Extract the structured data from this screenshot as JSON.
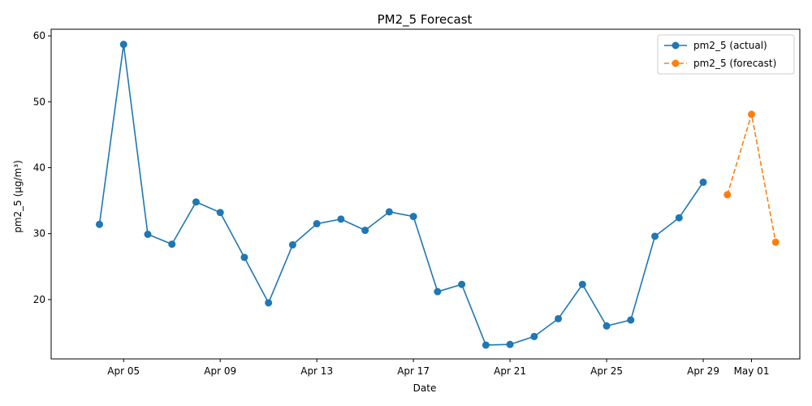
{
  "chart_data": {
    "type": "line",
    "title": "PM2_5 Forecast",
    "xlabel": "Date",
    "ylabel": "pm2_5 (µg/m³)",
    "xlim": [
      "2025-04-02",
      "2025-05-03"
    ],
    "ylim": [
      11,
      61
    ],
    "grid": false,
    "legend_position": "top-right",
    "x_ticks": [
      {
        "date": "2025-04-05",
        "label": "Apr 05"
      },
      {
        "date": "2025-04-09",
        "label": "Apr 09"
      },
      {
        "date": "2025-04-13",
        "label": "Apr 13"
      },
      {
        "date": "2025-04-17",
        "label": "Apr 17"
      },
      {
        "date": "2025-04-21",
        "label": "Apr 21"
      },
      {
        "date": "2025-04-25",
        "label": "Apr 25"
      },
      {
        "date": "2025-04-29",
        "label": "Apr 29"
      },
      {
        "date": "2025-05-01",
        "label": "May 01"
      }
    ],
    "y_ticks": [
      20,
      30,
      40,
      50,
      60
    ],
    "series": [
      {
        "name": "pm2_5 (actual)",
        "color": "#1f77b4",
        "style": "solid",
        "points": [
          {
            "date": "2025-04-04",
            "value": 31.4
          },
          {
            "date": "2025-04-05",
            "value": 58.7
          },
          {
            "date": "2025-04-06",
            "value": 29.9
          },
          {
            "date": "2025-04-07",
            "value": 28.4
          },
          {
            "date": "2025-04-08",
            "value": 34.8
          },
          {
            "date": "2025-04-09",
            "value": 33.2
          },
          {
            "date": "2025-04-10",
            "value": 26.4
          },
          {
            "date": "2025-04-11",
            "value": 19.5
          },
          {
            "date": "2025-04-12",
            "value": 28.3
          },
          {
            "date": "2025-04-13",
            "value": 31.5
          },
          {
            "date": "2025-04-14",
            "value": 32.2
          },
          {
            "date": "2025-04-15",
            "value": 30.5
          },
          {
            "date": "2025-04-16",
            "value": 33.3
          },
          {
            "date": "2025-04-17",
            "value": 32.6
          },
          {
            "date": "2025-04-18",
            "value": 21.2
          },
          {
            "date": "2025-04-19",
            "value": 22.3
          },
          {
            "date": "2025-04-20",
            "value": 13.1
          },
          {
            "date": "2025-04-21",
            "value": 13.2
          },
          {
            "date": "2025-04-22",
            "value": 14.4
          },
          {
            "date": "2025-04-23",
            "value": 17.1
          },
          {
            "date": "2025-04-24",
            "value": 22.3
          },
          {
            "date": "2025-04-25",
            "value": 16.0
          },
          {
            "date": "2025-04-26",
            "value": 16.9
          },
          {
            "date": "2025-04-27",
            "value": 29.6
          },
          {
            "date": "2025-04-28",
            "value": 32.4
          },
          {
            "date": "2025-04-29",
            "value": 37.8
          }
        ]
      },
      {
        "name": "pm2_5 (forecast)",
        "color": "#ff7f0e",
        "style": "dashed",
        "points": [
          {
            "date": "2025-04-30",
            "value": 35.9
          },
          {
            "date": "2025-05-01",
            "value": 48.1
          },
          {
            "date": "2025-05-02",
            "value": 28.7
          }
        ]
      }
    ]
  }
}
